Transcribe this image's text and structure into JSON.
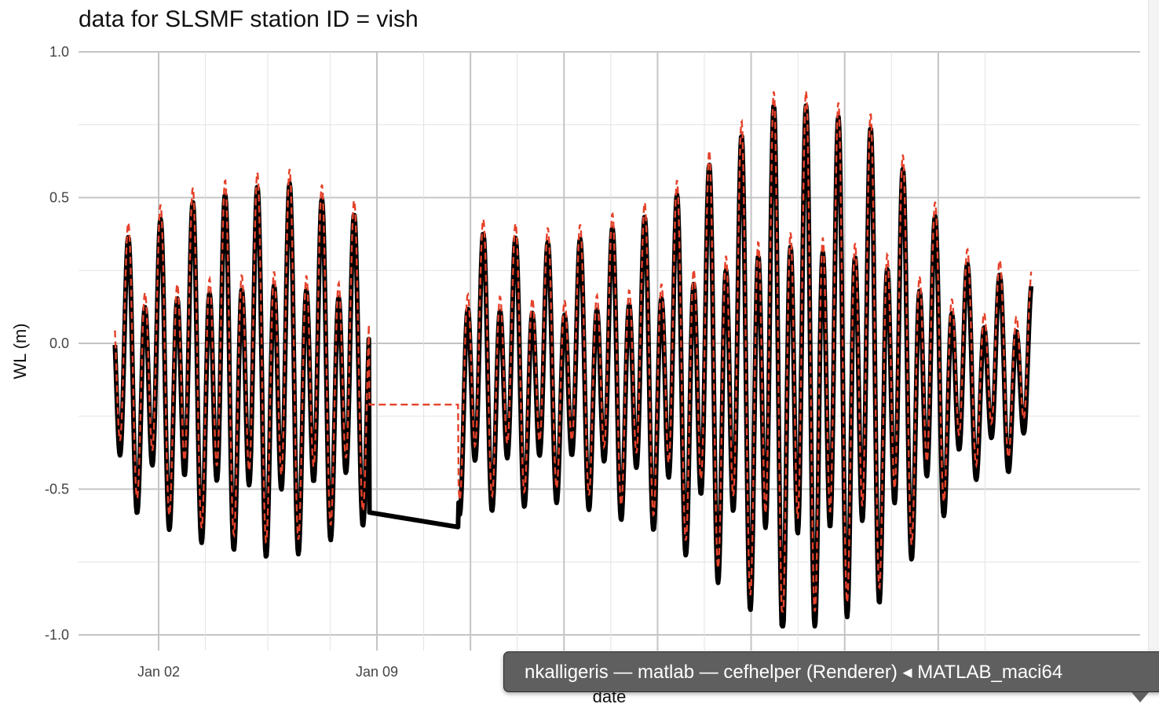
{
  "chart_data": {
    "type": "line",
    "title": "data for SLSMF station ID = vish",
    "xlabel": "date",
    "ylabel": "WL (m)",
    "ylim": [
      -1.0,
      1.0
    ],
    "y_ticks": [
      1.0,
      0.5,
      0.0,
      -0.5,
      -1.0
    ],
    "y_tick_labels": [
      "1.0",
      "0.5",
      "0.0",
      "-0.5",
      "-1.0"
    ],
    "x_range_days": [
      0.6,
      9.99
    ],
    "x_ticks": [
      {
        "day": 2,
        "label": "Jan 02"
      },
      {
        "day": 9,
        "label": "Jan 09"
      }
    ],
    "x_minor_days": [
      3.5,
      5.5,
      7.5,
      10.5
    ],
    "x_major_days": [
      12
    ],
    "gap": {
      "start_day": 8.75,
      "end_day": 11.6
    },
    "series": [
      {
        "name": "black (solid, thick)",
        "color": "#000000",
        "style": "solid"
      },
      {
        "name": "red (dashed)",
        "color": "#e5422b",
        "style": "dashed"
      }
    ],
    "start_day": 0.6,
    "end_day": 29.99,
    "step_days": 0.02,
    "tidal_amplitude_daily": [
      [
        0.6,
        0.42
      ],
      [
        3.0,
        0.55
      ],
      [
        6.0,
        0.62
      ],
      [
        9.0,
        0.48
      ],
      [
        12.0,
        0.46
      ],
      [
        15.0,
        0.42
      ],
      [
        18.0,
        0.52
      ],
      [
        22.0,
        0.88
      ],
      [
        25.0,
        0.78
      ],
      [
        28.0,
        0.35
      ],
      [
        29.99,
        0.3
      ]
    ]
  },
  "tooltip": {
    "text": "nkalligeris — matlab — cefhelper (Renderer) ◂ MATLAB_maci64"
  }
}
